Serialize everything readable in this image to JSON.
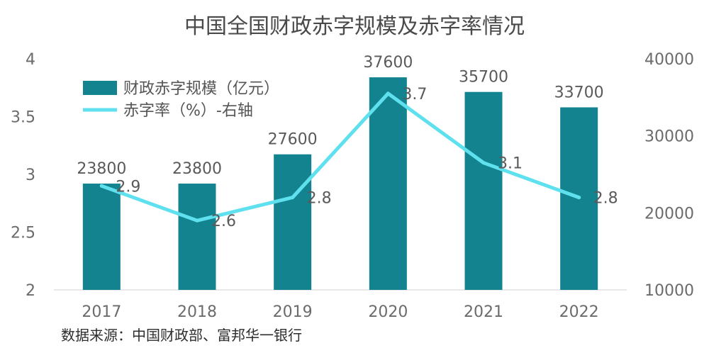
{
  "chart_data": {
    "type": "bar",
    "title": "中国全国财政赤字规模及赤字率情况",
    "categories": [
      "2017",
      "2018",
      "2019",
      "2020",
      "2021",
      "2022"
    ],
    "series": [
      {
        "name": "财政赤字规模（亿元）",
        "type": "bar",
        "axis": "right",
        "values": [
          23800,
          23800,
          27600,
          37600,
          35700,
          33700
        ],
        "color": "#13848f"
      },
      {
        "name": "赤字率（%）-右轴",
        "type": "line",
        "axis": "left",
        "values": [
          2.9,
          2.6,
          2.8,
          3.7,
          3.1,
          2.8
        ],
        "color": "#5fe0ee"
      }
    ],
    "left_axis": {
      "ylim": [
        2,
        4
      ],
      "ticks": [
        "2",
        "2.5",
        "3",
        "3.5",
        "4"
      ]
    },
    "right_axis": {
      "ylim": [
        10000,
        40000
      ],
      "ticks": [
        "10000",
        "20000",
        "30000",
        "40000"
      ]
    },
    "legend_position": "top-left",
    "grid": false
  },
  "source": "数据来源：中国财政部、富邦华一银行"
}
